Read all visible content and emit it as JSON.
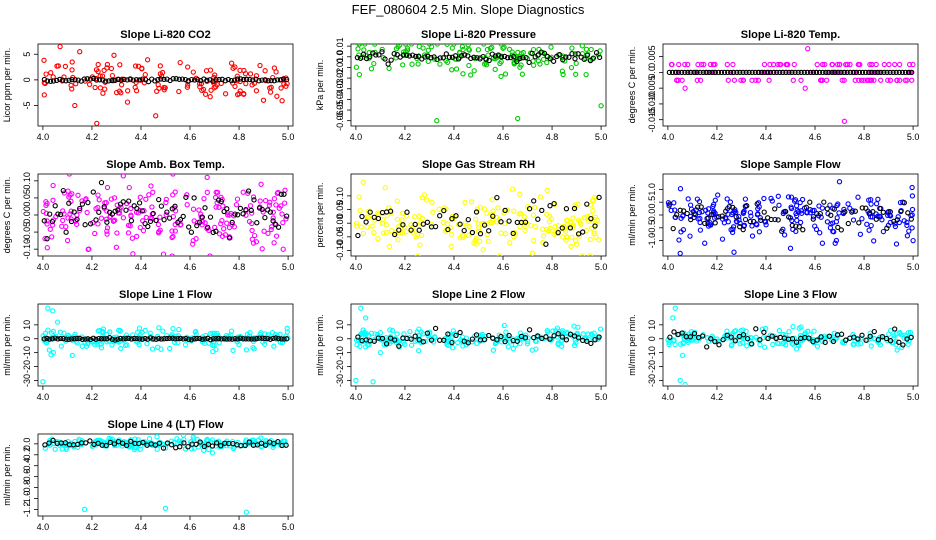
{
  "figure_title": "FEF_080604  2.5 Min. Slope Diagnostics",
  "colors": {
    "red": "#ff0000",
    "green": "#00cc00",
    "magenta": "#ff00ff",
    "yellow": "#ffff00",
    "blue": "#0000ff",
    "cyan": "#00ffff",
    "black": "#000000"
  },
  "chart_data": [
    {
      "type": "scatter",
      "title": "Slope Li-820 CO2",
      "xlabel": "",
      "ylabel": "Licor ppm per min.",
      "xlim": [
        3.98,
        5.02
      ],
      "ylim": [
        -9,
        7
      ],
      "xticks": [
        "4.0",
        "4.2",
        "4.4",
        "4.6",
        "4.8",
        "5.0"
      ],
      "yticks": [
        "-5",
        "0",
        "5"
      ],
      "primary_color": "red",
      "primary_spread": 1.8,
      "secondary_spread": 0.15,
      "center": 0,
      "n_primary": 140,
      "n_secondary": 80,
      "notable_points": [
        [
          4.07,
          6.5
        ],
        [
          4.15,
          5.5
        ],
        [
          4.29,
          4.8
        ],
        [
          4.13,
          -5
        ],
        [
          4.46,
          -7
        ],
        [
          4.22,
          -8.5
        ]
      ]
    },
    {
      "type": "scatter",
      "title": "Slope Li-820 Pressure",
      "xlabel": "",
      "ylabel": "kPa per min.",
      "xlim": [
        3.98,
        5.02
      ],
      "ylim": [
        -0.065,
        0.012
      ],
      "xticks": [
        "4.0",
        "4.2",
        "4.4",
        "4.6",
        "4.8",
        "5.0"
      ],
      "yticks": [
        "-0.06",
        "-0.05",
        "-0.04",
        "-0.03",
        "-0.02",
        "-0.01",
        "0.0",
        "0.01"
      ],
      "primary_color": "green",
      "primary_spread": 0.008,
      "secondary_spread": 0.002,
      "center": 0,
      "n_primary": 150,
      "n_secondary": 80,
      "notable_points": [
        [
          4.33,
          -0.06
        ],
        [
          4.66,
          -0.058
        ],
        [
          5.0,
          -0.046
        ],
        [
          4.6,
          0.008
        ],
        [
          4.94,
          0.007
        ]
      ]
    },
    {
      "type": "scatter",
      "title": "Slope Li-820 Temp.",
      "xlabel": "",
      "ylabel": "degrees C per min.",
      "xlim": [
        3.98,
        5.02
      ],
      "ylim": [
        -0.017,
        0.009
      ],
      "xticks": [
        "4.0",
        "4.2",
        "4.4",
        "4.6",
        "4.8",
        "5.0"
      ],
      "yticks": [
        "-0.015",
        "-0.010",
        "-0.005",
        "0.0",
        "0.005"
      ],
      "primary_color": "magenta",
      "levels": [
        0.0025,
        0,
        -0.0025
      ],
      "center": 0,
      "n_primary": 130,
      "n_secondary": 80,
      "notable_points": [
        [
          4.57,
          0.0075
        ],
        [
          4.72,
          -0.0155
        ],
        [
          4.56,
          -0.005
        ],
        [
          4.07,
          -0.005
        ]
      ]
    },
    {
      "type": "scatter",
      "title": "Slope Amb. Box Temp.",
      "xlabel": "",
      "ylabel": "degrees C per min.",
      "xlim": [
        3.98,
        5.02
      ],
      "ylim": [
        -0.12,
        0.12
      ],
      "xticks": [
        "4.0",
        "4.2",
        "4.4",
        "4.6",
        "4.8",
        "5.0"
      ],
      "yticks": [
        "-0.10",
        "-0.05",
        "0.00",
        "0.05",
        "0.10"
      ],
      "primary_color": "magenta",
      "primary_spread": 0.045,
      "secondary_spread": 0.03,
      "center": 0,
      "n_primary": 220,
      "n_secondary": 90,
      "notable_points": [
        [
          4.67,
          0.11
        ],
        [
          4.89,
          0.09
        ],
        [
          4.98,
          -0.1
        ]
      ]
    },
    {
      "type": "scatter",
      "title": "Slope Gas Stream RH",
      "xlabel": "",
      "ylabel": "percent per min.",
      "xlim": [
        3.98,
        5.02
      ],
      "ylim": [
        -0.12,
        0.18
      ],
      "xticks": [
        "4.0",
        "4.2",
        "4.4",
        "4.6",
        "4.8",
        "5.0"
      ],
      "yticks": [
        "-0.10",
        "-0.05",
        "0.00",
        "0.05",
        "0.10"
      ],
      "primary_color": "yellow",
      "primary_spread": 0.045,
      "secondary_spread": 0.04,
      "center": 0,
      "n_primary": 220,
      "n_secondary": 60,
      "notable_points": [
        [
          4.03,
          0.15
        ],
        [
          4.12,
          0.13
        ],
        [
          4.78,
          0.12
        ],
        [
          4.72,
          -0.11
        ]
      ]
    },
    {
      "type": "scatter",
      "title": "Slope Sample Flow",
      "xlabel": "",
      "ylabel": "ml/min per min.",
      "xlim": [
        3.98,
        5.02
      ],
      "ylim": [
        -1.6,
        1.6
      ],
      "xticks": [
        "4.0",
        "4.2",
        "4.4",
        "4.6",
        "4.8",
        "5.0"
      ],
      "yticks": [
        "-1.0",
        "-0.5",
        "0.0",
        "0.5",
        "1.0"
      ],
      "primary_color": "blue",
      "primary_spread": 0.45,
      "secondary_spread": 0.3,
      "center": 0,
      "n_primary": 220,
      "n_secondary": 70,
      "notable_points": [
        [
          4.05,
          -1.5
        ],
        [
          4.15,
          -1.1
        ],
        [
          4.5,
          -1.3
        ],
        [
          4.63,
          -1.1
        ],
        [
          5.0,
          -1.0
        ],
        [
          4.7,
          1.3
        ]
      ]
    },
    {
      "type": "scatter",
      "title": "Slope Line 1 Flow",
      "xlabel": "",
      "ylabel": "ml/min per min.",
      "xlim": [
        3.98,
        5.02
      ],
      "ylim": [
        -34,
        25
      ],
      "xticks": [
        "4.0",
        "4.2",
        "4.4",
        "4.6",
        "4.8",
        "5.0"
      ],
      "yticks": [
        "-30",
        "-20",
        "-10",
        "0",
        "10"
      ],
      "primary_color": "cyan",
      "primary_spread": 3.5,
      "secondary_spread": 0.3,
      "center": 0,
      "n_primary": 200,
      "n_secondary": 90,
      "notable_points": [
        [
          4.0,
          -31
        ],
        [
          4.02,
          22
        ],
        [
          4.04,
          20
        ],
        [
          4.06,
          12
        ],
        [
          4.12,
          -12
        ],
        [
          4.83,
          -8
        ]
      ]
    },
    {
      "type": "scatter",
      "title": "Slope Line 2 Flow",
      "xlabel": "",
      "ylabel": "ml/min per min.",
      "xlim": [
        3.98,
        5.02
      ],
      "ylim": [
        -34,
        25
      ],
      "xticks": [
        "4.0",
        "4.2",
        "4.4",
        "4.6",
        "4.8",
        "5.0"
      ],
      "yticks": [
        "-30",
        "-20",
        "-10",
        "0",
        "10"
      ],
      "primary_color": "cyan",
      "primary_spread": 3.5,
      "secondary_spread": 2.5,
      "center": 0,
      "n_primary": 200,
      "n_secondary": 60,
      "notable_points": [
        [
          4.02,
          22
        ],
        [
          4.0,
          -30
        ],
        [
          4.07,
          -31
        ],
        [
          4.04,
          15
        ],
        [
          4.1,
          -10
        ]
      ]
    },
    {
      "type": "scatter",
      "title": "Slope Line 3 Flow",
      "xlabel": "",
      "ylabel": "ml/min per min.",
      "xlim": [
        3.98,
        5.02
      ],
      "ylim": [
        -34,
        25
      ],
      "xticks": [
        "4.0",
        "4.2",
        "4.4",
        "4.6",
        "4.8",
        "5.0"
      ],
      "yticks": [
        "-30",
        "-20",
        "-10",
        "0",
        "10"
      ],
      "primary_color": "cyan",
      "primary_spread": 3.5,
      "secondary_spread": 2.5,
      "center": 0,
      "n_primary": 200,
      "n_secondary": 60,
      "notable_points": [
        [
          4.03,
          22
        ],
        [
          4.05,
          -30
        ],
        [
          4.07,
          -33
        ],
        [
          4.02,
          15
        ],
        [
          4.06,
          -12
        ]
      ]
    },
    {
      "type": "scatter",
      "title": "Slope Line 4 (LT) Flow",
      "xlabel": "",
      "ylabel": "ml/min per min.",
      "xlim": [
        3.98,
        5.02
      ],
      "ylim": [
        -1.32,
        0.18
      ],
      "xticks": [
        "4.0",
        "4.2",
        "4.4",
        "4.6",
        "4.8",
        "5.0"
      ],
      "yticks": [
        "-1.2",
        "-1.0",
        "-0.8",
        "-0.6",
        "-0.4",
        "-0.2",
        "0.0"
      ],
      "primary_color": "cyan",
      "primary_spread": 0.05,
      "secondary_spread": 0.03,
      "center": 0,
      "n_primary": 200,
      "n_secondary": 60,
      "notable_points": [
        [
          4.17,
          -1.2
        ],
        [
          4.5,
          -1.18
        ],
        [
          4.83,
          -1.25
        ],
        [
          4.05,
          -0.1
        ],
        [
          4.27,
          0.1
        ]
      ]
    }
  ]
}
